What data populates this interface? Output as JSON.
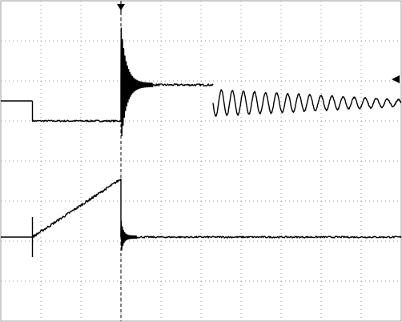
{
  "chart_data": {
    "type": "line",
    "grid": true,
    "background": "#ffffff",
    "grid_color": "#9a9a9a",
    "trace_color": "#000000",
    "divisions": {
      "x": 10,
      "y": 8
    },
    "xlim": [
      0,
      10
    ],
    "ylim": [
      0,
      8
    ],
    "time_cursor_div": 3,
    "series": [
      {
        "channel": 1,
        "segments": [
          {
            "kind": "level",
            "x0": 0.0,
            "x1": 0.79,
            "y": 5.5
          },
          {
            "kind": "step",
            "x": 0.79,
            "y0": 5.5,
            "y1": 5.0
          },
          {
            "kind": "level",
            "x0": 0.79,
            "x1": 3.0,
            "y": 5.0,
            "noise": 0.02
          },
          {
            "kind": "step",
            "x": 3.0,
            "y0": 5.0,
            "y1": 5.9
          },
          {
            "kind": "ringing",
            "x0": 3.0,
            "x1": 3.8,
            "y": 5.9,
            "amp0": 1.5,
            "amp1": 0.04,
            "cycles": 26,
            "decay": 6
          },
          {
            "kind": "level",
            "x0": 3.8,
            "x1": 5.3,
            "y": 5.9,
            "noise": 0.025
          },
          {
            "kind": "oscillation",
            "x0": 5.3,
            "x1": 10.0,
            "center": 5.45,
            "amp0": 0.33,
            "amp1": 0.08,
            "cycles": 17,
            "phase": 3.1416
          }
        ]
      },
      {
        "channel": 2,
        "segments": [
          {
            "kind": "level",
            "x0": 0.0,
            "x1": 0.79,
            "y": 2.1
          },
          {
            "kind": "spike",
            "x": 0.79,
            "y0": 1.6,
            "y1": 2.6
          },
          {
            "kind": "ramp",
            "x0": 0.79,
            "x1": 3.0,
            "y0": 2.1,
            "y1": 3.55,
            "noise": 0.03
          },
          {
            "kind": "step",
            "x": 3.0,
            "y0": 3.55,
            "y1": 2.1
          },
          {
            "kind": "ringing",
            "x0": 3.0,
            "x1": 3.4,
            "y": 2.1,
            "amp0": 0.45,
            "amp1": 0.03,
            "cycles": 14,
            "decay": 7
          },
          {
            "kind": "level",
            "x0": 3.4,
            "x1": 10.0,
            "y": 2.1,
            "noise": 0.02
          }
        ]
      }
    ],
    "markers": [
      {
        "kind": "trigger-arrow",
        "x": 3.0,
        "y": 8.0
      },
      {
        "kind": "level-arrow",
        "x": 10.0,
        "y": 6.04
      }
    ]
  }
}
